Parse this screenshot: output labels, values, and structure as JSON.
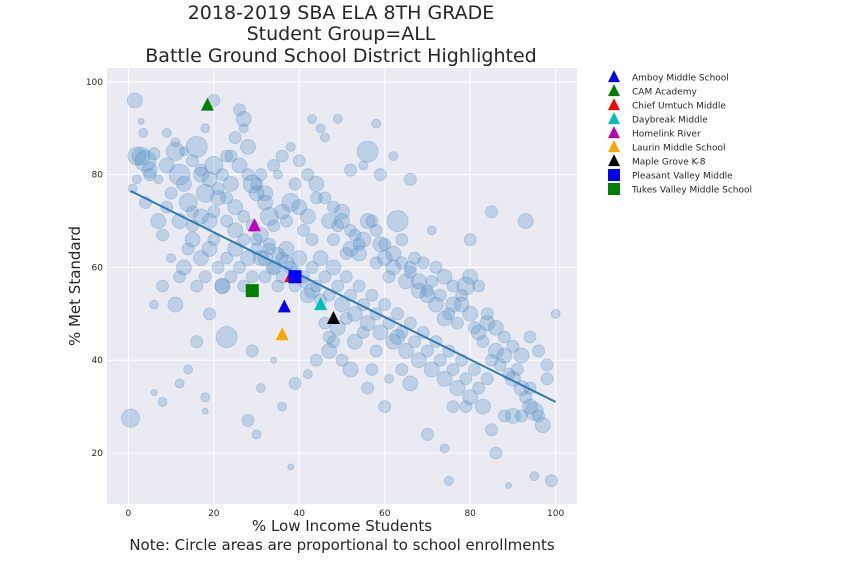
{
  "chart_data": {
    "type": "scatter",
    "title_lines": [
      "2018-2019 SBA ELA 8TH GRADE",
      "Student Group=ALL",
      "Battle Ground School District Highlighted"
    ],
    "xlabel": "% Low Income Students",
    "note": "Note: Circle areas are proportional to school enrollments",
    "ylabel": "% Met Standard",
    "xlim": [
      -5,
      105
    ],
    "ylim": [
      9,
      103
    ],
    "xticks": [
      0,
      20,
      40,
      60,
      80,
      100
    ],
    "yticks": [
      20,
      40,
      60,
      80,
      100
    ],
    "grid": true,
    "legend_position": "outside-right",
    "background_color": "#eaeaf2",
    "bubble_color": "#4c8cc4",
    "trendline": {
      "x": [
        0.5,
        100
      ],
      "y": [
        76.5,
        31
      ],
      "color": "#2e7ab6"
    },
    "background_points": [
      [
        1.5,
        96,
        10
      ],
      [
        0.5,
        27.5,
        12
      ],
      [
        3,
        91.5,
        4
      ],
      [
        3.5,
        89,
        6
      ],
      [
        2,
        84,
        12
      ],
      [
        4,
        83,
        14
      ],
      [
        5,
        81,
        10
      ],
      [
        6,
        84.5,
        8
      ],
      [
        7,
        79,
        6
      ],
      [
        9,
        82,
        10
      ],
      [
        10,
        76,
        8
      ],
      [
        11,
        85,
        12
      ],
      [
        12,
        80,
        14
      ],
      [
        13,
        78,
        10
      ],
      [
        14,
        74,
        12
      ],
      [
        15,
        72,
        8
      ],
      [
        16,
        86,
        14
      ],
      [
        17,
        80,
        10
      ],
      [
        18,
        76,
        12
      ],
      [
        19,
        70,
        10
      ],
      [
        20,
        82,
        12
      ],
      [
        21,
        75,
        10
      ],
      [
        22,
        80,
        8
      ],
      [
        23,
        84,
        8
      ],
      [
        24,
        78,
        10
      ],
      [
        25,
        88,
        8
      ],
      [
        26,
        94,
        8
      ],
      [
        27,
        90,
        6
      ],
      [
        28,
        86,
        10
      ],
      [
        29,
        78,
        12
      ],
      [
        30,
        76,
        10
      ],
      [
        31,
        80,
        8
      ],
      [
        32,
        74,
        10
      ],
      [
        33,
        71,
        12
      ],
      [
        34,
        69,
        8
      ],
      [
        35,
        80,
        6
      ],
      [
        36,
        72,
        10
      ],
      [
        37,
        70,
        8
      ],
      [
        38,
        74,
        12
      ],
      [
        39,
        78,
        8
      ],
      [
        40,
        73,
        10
      ],
      [
        41,
        68,
        8
      ],
      [
        42,
        71,
        10
      ],
      [
        43,
        66,
        8
      ],
      [
        44,
        75,
        8
      ],
      [
        45,
        90,
        6
      ],
      [
        46,
        88,
        6
      ],
      [
        47,
        70,
        10
      ],
      [
        48,
        66,
        8
      ],
      [
        49,
        69,
        8
      ],
      [
        50,
        72,
        10
      ],
      [
        51,
        63,
        8
      ],
      [
        52,
        64,
        10
      ],
      [
        53,
        67,
        8
      ],
      [
        54,
        63,
        10
      ],
      [
        55,
        66,
        10
      ],
      [
        56,
        85,
        14
      ],
      [
        57,
        70,
        8
      ],
      [
        58,
        61,
        8
      ],
      [
        59,
        65,
        10
      ],
      [
        60,
        62,
        10
      ],
      [
        61,
        58,
        8
      ],
      [
        62,
        60,
        10
      ],
      [
        63,
        70,
        14
      ],
      [
        64,
        66,
        8
      ],
      [
        65,
        57,
        10
      ],
      [
        66,
        60,
        8
      ],
      [
        67,
        62,
        8
      ],
      [
        68,
        55,
        10
      ],
      [
        69,
        61,
        8
      ],
      [
        70,
        54,
        10
      ],
      [
        71,
        57,
        8
      ],
      [
        72,
        52,
        10
      ],
      [
        73,
        54,
        8
      ],
      [
        74,
        49,
        10
      ],
      [
        75,
        50,
        8
      ],
      [
        76,
        52,
        10
      ],
      [
        77,
        48,
        8
      ],
      [
        78,
        52,
        10
      ],
      [
        79,
        56,
        12
      ],
      [
        80,
        50,
        10
      ],
      [
        81,
        47,
        8
      ],
      [
        82,
        46,
        10
      ],
      [
        83,
        44,
        8
      ],
      [
        84,
        48,
        10
      ],
      [
        85,
        40,
        8
      ],
      [
        86,
        42,
        10
      ],
      [
        87,
        39,
        8
      ],
      [
        88,
        41,
        10
      ],
      [
        89,
        37,
        8
      ],
      [
        90,
        36,
        10
      ],
      [
        91,
        38,
        8
      ],
      [
        92,
        34,
        10
      ],
      [
        93,
        32,
        8
      ],
      [
        94,
        30,
        10
      ],
      [
        95,
        29,
        12
      ],
      [
        96,
        28,
        8
      ],
      [
        97,
        26,
        10
      ],
      [
        98,
        36,
        8
      ],
      [
        100,
        50,
        6
      ],
      [
        6,
        52,
        6
      ],
      [
        8,
        56,
        8
      ],
      [
        10,
        62,
        6
      ],
      [
        11,
        52,
        10
      ],
      [
        12,
        58,
        8
      ],
      [
        13,
        60,
        10
      ],
      [
        14,
        64,
        8
      ],
      [
        15,
        66,
        10
      ],
      [
        16,
        56,
        8
      ],
      [
        17,
        62,
        10
      ],
      [
        18,
        58,
        8
      ],
      [
        19,
        64,
        10
      ],
      [
        20,
        66,
        8
      ],
      [
        21,
        60,
        8
      ],
      [
        22,
        56,
        10
      ],
      [
        23,
        62,
        8
      ],
      [
        24,
        58,
        8
      ],
      [
        25,
        64,
        10
      ],
      [
        26,
        60,
        8
      ],
      [
        27,
        56,
        8
      ],
      [
        28,
        62,
        10
      ],
      [
        29,
        58,
        8
      ],
      [
        30,
        66,
        8
      ],
      [
        31,
        62,
        10
      ],
      [
        32,
        58,
        8
      ],
      [
        33,
        64,
        8
      ],
      [
        34,
        60,
        10
      ],
      [
        35,
        56,
        8
      ],
      [
        36,
        62,
        8
      ],
      [
        37,
        64,
        10
      ],
      [
        38,
        60,
        8
      ],
      [
        39,
        56,
        8
      ],
      [
        40,
        62,
        10
      ],
      [
        41,
        58,
        8
      ],
      [
        42,
        54,
        10
      ],
      [
        43,
        60,
        8
      ],
      [
        44,
        56,
        8
      ],
      [
        45,
        62,
        10
      ],
      [
        46,
        58,
        8
      ],
      [
        47,
        54,
        8
      ],
      [
        48,
        60,
        10
      ],
      [
        49,
        56,
        8
      ],
      [
        50,
        52,
        10
      ],
      [
        51,
        58,
        8
      ],
      [
        52,
        54,
        8
      ],
      [
        53,
        50,
        10
      ],
      [
        54,
        56,
        8
      ],
      [
        55,
        52,
        8
      ],
      [
        56,
        48,
        10
      ],
      [
        57,
        54,
        8
      ],
      [
        58,
        50,
        8
      ],
      [
        59,
        46,
        10
      ],
      [
        60,
        52,
        8
      ],
      [
        61,
        48,
        8
      ],
      [
        62,
        44,
        10
      ],
      [
        63,
        50,
        8
      ],
      [
        64,
        46,
        8
      ],
      [
        65,
        42,
        10
      ],
      [
        66,
        48,
        8
      ],
      [
        67,
        44,
        8
      ],
      [
        68,
        40,
        10
      ],
      [
        69,
        46,
        8
      ],
      [
        70,
        42,
        8
      ],
      [
        71,
        38,
        10
      ],
      [
        72,
        44,
        8
      ],
      [
        73,
        40,
        8
      ],
      [
        74,
        36,
        10
      ],
      [
        75,
        42,
        8
      ],
      [
        76,
        38,
        8
      ],
      [
        77,
        34,
        10
      ],
      [
        78,
        40,
        8
      ],
      [
        79,
        36,
        8
      ],
      [
        80,
        32,
        10
      ],
      [
        81,
        38,
        8
      ],
      [
        82,
        34,
        8
      ],
      [
        83,
        30,
        10
      ],
      [
        84,
        36,
        8
      ],
      [
        85,
        25,
        8
      ],
      [
        86,
        20,
        8
      ],
      [
        88,
        28,
        8
      ],
      [
        90,
        28,
        10
      ],
      [
        92,
        28,
        8
      ],
      [
        94,
        34,
        8
      ],
      [
        95,
        15,
        6
      ],
      [
        99,
        14,
        8
      ],
      [
        89,
        13,
        4
      ],
      [
        75,
        14,
        6
      ],
      [
        79,
        30,
        8
      ],
      [
        76,
        30,
        8
      ],
      [
        60,
        30,
        8
      ],
      [
        56,
        34,
        8
      ],
      [
        52,
        38,
        10
      ],
      [
        50,
        40,
        8
      ],
      [
        47,
        42,
        10
      ],
      [
        44,
        40,
        8
      ],
      [
        42,
        37,
        6
      ],
      [
        39,
        35,
        8
      ],
      [
        36,
        30,
        6
      ],
      [
        34,
        40,
        4
      ],
      [
        30,
        24,
        6
      ],
      [
        28,
        27,
        8
      ],
      [
        23,
        45,
        14
      ],
      [
        22,
        56,
        10
      ],
      [
        19,
        50,
        8
      ],
      [
        16,
        44,
        8
      ],
      [
        14,
        38,
        6
      ],
      [
        12,
        35,
        6
      ],
      [
        8,
        31,
        6
      ],
      [
        6,
        33,
        4
      ],
      [
        18,
        29,
        4
      ],
      [
        18,
        32,
        6
      ],
      [
        29,
        42,
        8
      ],
      [
        31,
        34,
        6
      ],
      [
        38,
        17,
        4
      ],
      [
        46,
        48,
        8
      ],
      [
        48,
        44,
        8
      ],
      [
        57,
        38,
        8
      ],
      [
        63,
        45,
        10
      ],
      [
        70,
        24,
        8
      ],
      [
        74,
        21,
        6
      ],
      [
        66,
        35,
        10
      ],
      [
        64,
        38,
        8
      ],
      [
        61,
        36,
        6
      ],
      [
        58,
        42,
        8
      ],
      [
        55,
        46,
        8
      ],
      [
        53,
        44,
        10
      ],
      [
        51,
        49,
        8
      ],
      [
        49,
        47,
        10
      ],
      [
        47,
        45,
        8
      ],
      [
        45,
        53,
        8
      ],
      [
        43,
        55,
        10
      ],
      [
        41,
        57,
        8
      ],
      [
        39,
        59,
        8
      ],
      [
        37,
        61,
        10
      ],
      [
        35,
        63,
        8
      ],
      [
        33,
        65,
        8
      ],
      [
        31,
        67,
        10
      ],
      [
        29,
        69,
        8
      ],
      [
        27,
        71,
        8
      ],
      [
        25,
        73,
        10
      ],
      [
        23,
        75,
        8
      ],
      [
        21,
        77,
        8
      ],
      [
        19,
        79,
        10
      ],
      [
        17,
        81,
        8
      ],
      [
        15,
        83,
        8
      ],
      [
        13,
        85,
        6
      ],
      [
        11,
        87,
        6
      ],
      [
        9,
        89,
        6
      ],
      [
        24,
        84,
        8
      ],
      [
        26,
        82,
        10
      ],
      [
        28,
        80,
        8
      ],
      [
        30,
        78,
        8
      ],
      [
        32,
        76,
        10
      ],
      [
        34,
        82,
        8
      ],
      [
        36,
        84,
        8
      ],
      [
        38,
        86,
        6
      ],
      [
        40,
        83,
        8
      ],
      [
        42,
        80,
        8
      ],
      [
        44,
        78,
        10
      ],
      [
        46,
        75,
        8
      ],
      [
        48,
        73,
        8
      ],
      [
        50,
        70,
        10
      ],
      [
        52,
        68,
        8
      ],
      [
        54,
        65,
        8
      ],
      [
        56,
        70,
        10
      ],
      [
        58,
        68,
        8
      ],
      [
        60,
        65,
        8
      ],
      [
        62,
        63,
        10
      ],
      [
        64,
        61,
        8
      ],
      [
        66,
        59,
        8
      ],
      [
        68,
        57,
        10
      ],
      [
        70,
        55,
        8
      ],
      [
        72,
        60,
        8
      ],
      [
        74,
        58,
        10
      ],
      [
        76,
        56,
        8
      ],
      [
        78,
        54,
        8
      ],
      [
        80,
        58,
        10
      ],
      [
        82,
        56,
        8
      ],
      [
        84,
        50,
        8
      ],
      [
        86,
        47,
        10
      ],
      [
        88,
        45,
        8
      ],
      [
        90,
        43,
        8
      ],
      [
        92,
        41,
        10
      ],
      [
        94,
        45,
        8
      ],
      [
        96,
        42,
        8
      ],
      [
        98,
        39,
        8
      ],
      [
        93,
        70,
        10
      ],
      [
        85,
        72,
        8
      ],
      [
        80,
        66,
        8
      ],
      [
        71,
        68,
        6
      ],
      [
        66,
        79,
        8
      ],
      [
        62,
        84,
        6
      ],
      [
        59,
        80,
        8
      ],
      [
        55,
        82,
        6
      ],
      [
        52,
        81,
        8
      ],
      [
        43,
        92,
        6
      ],
      [
        49,
        92,
        6
      ],
      [
        58,
        91,
        6
      ],
      [
        27,
        92,
        10
      ],
      [
        20,
        96,
        8
      ],
      [
        18,
        90,
        6
      ],
      [
        4,
        74,
        8
      ],
      [
        7,
        70,
        10
      ],
      [
        9,
        73,
        8
      ],
      [
        5,
        80,
        8
      ],
      [
        3,
        84,
        12
      ],
      [
        2,
        79,
        6
      ],
      [
        1,
        77,
        6
      ],
      [
        8,
        67,
        8
      ],
      [
        12,
        70,
        10
      ],
      [
        15,
        69,
        8
      ],
      [
        17,
        71,
        10
      ],
      [
        20,
        72,
        8
      ],
      [
        23,
        70,
        8
      ],
      [
        25,
        68,
        10
      ],
      [
        27,
        66,
        8
      ],
      [
        30,
        64,
        8
      ],
      [
        32,
        62,
        10
      ],
      [
        34,
        60,
        8
      ],
      [
        36,
        58,
        8
      ]
    ],
    "highlighted": [
      {
        "name": "Amboy Middle School",
        "x": 36.5,
        "y": 51.5,
        "marker": "triangle",
        "color": "#0000ff"
      },
      {
        "name": "CAM Academy",
        "x": 18.5,
        "y": 95,
        "marker": "triangle",
        "color": "#008000"
      },
      {
        "name": "Chief Umtuch Middle",
        "x": 38,
        "y": 58,
        "marker": "triangle",
        "color": "#ff0000"
      },
      {
        "name": "Daybreak Middle",
        "x": 45,
        "y": 52,
        "marker": "triangle",
        "color": "#00bfbf"
      },
      {
        "name": "Homelink River",
        "x": 29.5,
        "y": 69,
        "marker": "triangle",
        "color": "#bf00bf"
      },
      {
        "name": "Laurin Middle School",
        "x": 36,
        "y": 45.5,
        "marker": "triangle",
        "color": "#ffa500"
      },
      {
        "name": "Maple Grove K-8",
        "x": 48,
        "y": 49,
        "marker": "triangle",
        "color": "#000000"
      },
      {
        "name": "Pleasant Valley Middle",
        "x": 39,
        "y": 58,
        "marker": "square",
        "color": "#0000ff"
      },
      {
        "name": "Tukes Valley Middle School",
        "x": 29,
        "y": 55,
        "marker": "square",
        "color": "#008000"
      }
    ]
  }
}
